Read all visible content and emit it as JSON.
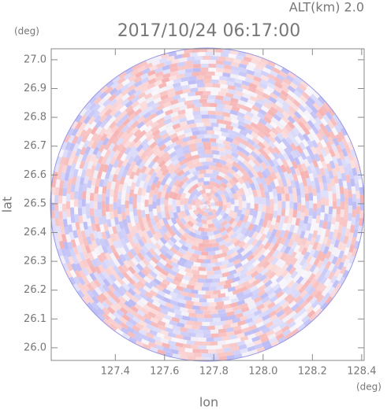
{
  "chart_data": {
    "type": "radar-ppi",
    "title": "2017/10/24 06:17:00",
    "subtitle": "ALT(km) 2.0",
    "xlabel": "lon",
    "ylabel": "lat",
    "xunit": "(deg)",
    "yunit": "(deg)",
    "xlim": [
      127.14,
      128.41
    ],
    "ylim": [
      25.956,
      27.038
    ],
    "xticks": [
      127.4,
      127.6,
      127.8,
      {
        "value": 128.0,
        "label": "128.0"
      },
      128.2,
      128.4
    ],
    "yticks": [
      {
        "value": 26.0,
        "label": "26.0"
      },
      26.1,
      26.2,
      26.3,
      26.4,
      26.5,
      26.6,
      26.7,
      26.8,
      26.9,
      {
        "value": 27.0,
        "label": "27.0"
      }
    ]
  }
}
